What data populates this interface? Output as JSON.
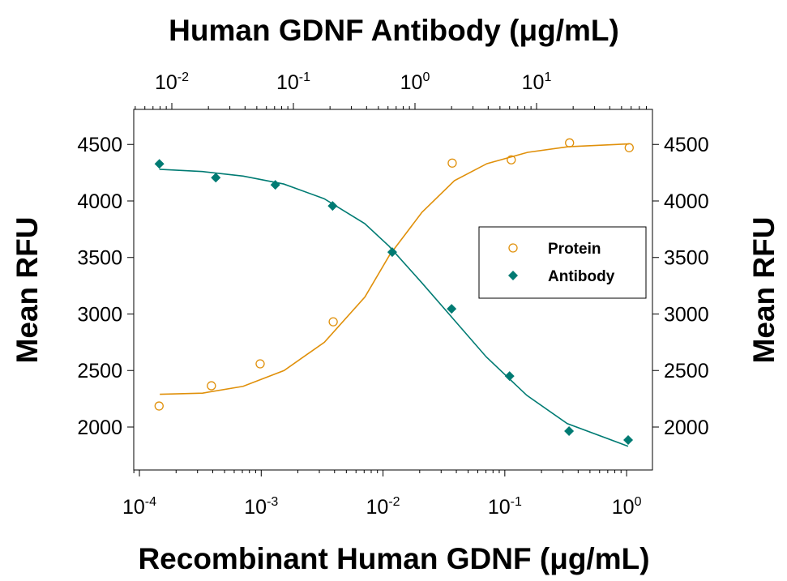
{
  "chart_data": {
    "type": "dose-response",
    "title": "Human GDNF Antibody (μg/mL)",
    "x_label": "Recombinant Human GDNF (μg/mL)",
    "y_label": "Mean RFU",
    "y2_label": "Mean RFU",
    "log_x": true,
    "xlim": [
      8.98e-05,
      1.63
    ],
    "xticks": [
      {
        "value": 0.0001,
        "label": "10",
        "exponent": "-4"
      },
      {
        "value": 0.001,
        "label": "10",
        "exponent": "-3"
      },
      {
        "value": 0.01,
        "label": "10",
        "exponent": "-2"
      },
      {
        "value": 0.1,
        "label": "10",
        "exponent": "-1"
      },
      {
        "value": 1,
        "label": "10",
        "exponent": "0"
      }
    ],
    "x2lim": [
      0.00486,
      89.8
    ],
    "x2ticks": [
      {
        "value": 0.01,
        "label": "10",
        "exponent": "-2"
      },
      {
        "value": 0.1,
        "label": "10",
        "exponent": "-1"
      },
      {
        "value": 1,
        "label": "10",
        "exponent": "0"
      },
      {
        "value": 10,
        "label": "10",
        "exponent": "1"
      }
    ],
    "ylim": [
      1620,
      4810
    ],
    "yticks": [
      2000,
      2500,
      3000,
      3500,
      4000,
      4500
    ],
    "y2lim": [
      1620,
      4810
    ],
    "y2ticks": [
      2000,
      2500,
      3000,
      3500,
      4000,
      4500
    ],
    "legend": "right",
    "series": [
      {
        "name": "Protein",
        "color": "#e0900a",
        "marker": "circle",
        "axis": "x",
        "x": [
          0.000145,
          0.00039,
          0.00098,
          0.0039,
          0.037,
          0.113,
          0.34,
          1.05
        ],
        "values": [
          2186,
          2365,
          2559,
          2931,
          4335,
          4364,
          4514,
          4471
        ],
        "fit_x": [
          0.000147,
          0.00033,
          0.00071,
          0.00154,
          0.0033,
          0.0071,
          0.0113,
          0.0209,
          0.0386,
          0.0713,
          0.154,
          0.331,
          1.05
        ],
        "fit_values": [
          2290,
          2300,
          2360,
          2500,
          2750,
          3150,
          3520,
          3900,
          4180,
          4330,
          4430,
          4480,
          4505
        ]
      },
      {
        "name": "Antibody",
        "color": "#007b73",
        "marker": "diamond",
        "axis": "x2",
        "x": [
          0.0079,
          0.023,
          0.071,
          0.21,
          0.65,
          2.0,
          6.0,
          18.5,
          56.7
        ],
        "values": [
          4328,
          4206,
          4142,
          3956,
          3547,
          3046,
          2451,
          1964,
          1885
        ],
        "fit_x": [
          0.0079,
          0.0179,
          0.0386,
          0.0832,
          0.179,
          0.386,
          0.612,
          1.13,
          2.09,
          3.86,
          8.32,
          17.9,
          56.6
        ],
        "fit_values": [
          4280,
          4260,
          4220,
          4150,
          4020,
          3800,
          3600,
          3280,
          2950,
          2620,
          2280,
          2030,
          1830
        ]
      }
    ]
  }
}
